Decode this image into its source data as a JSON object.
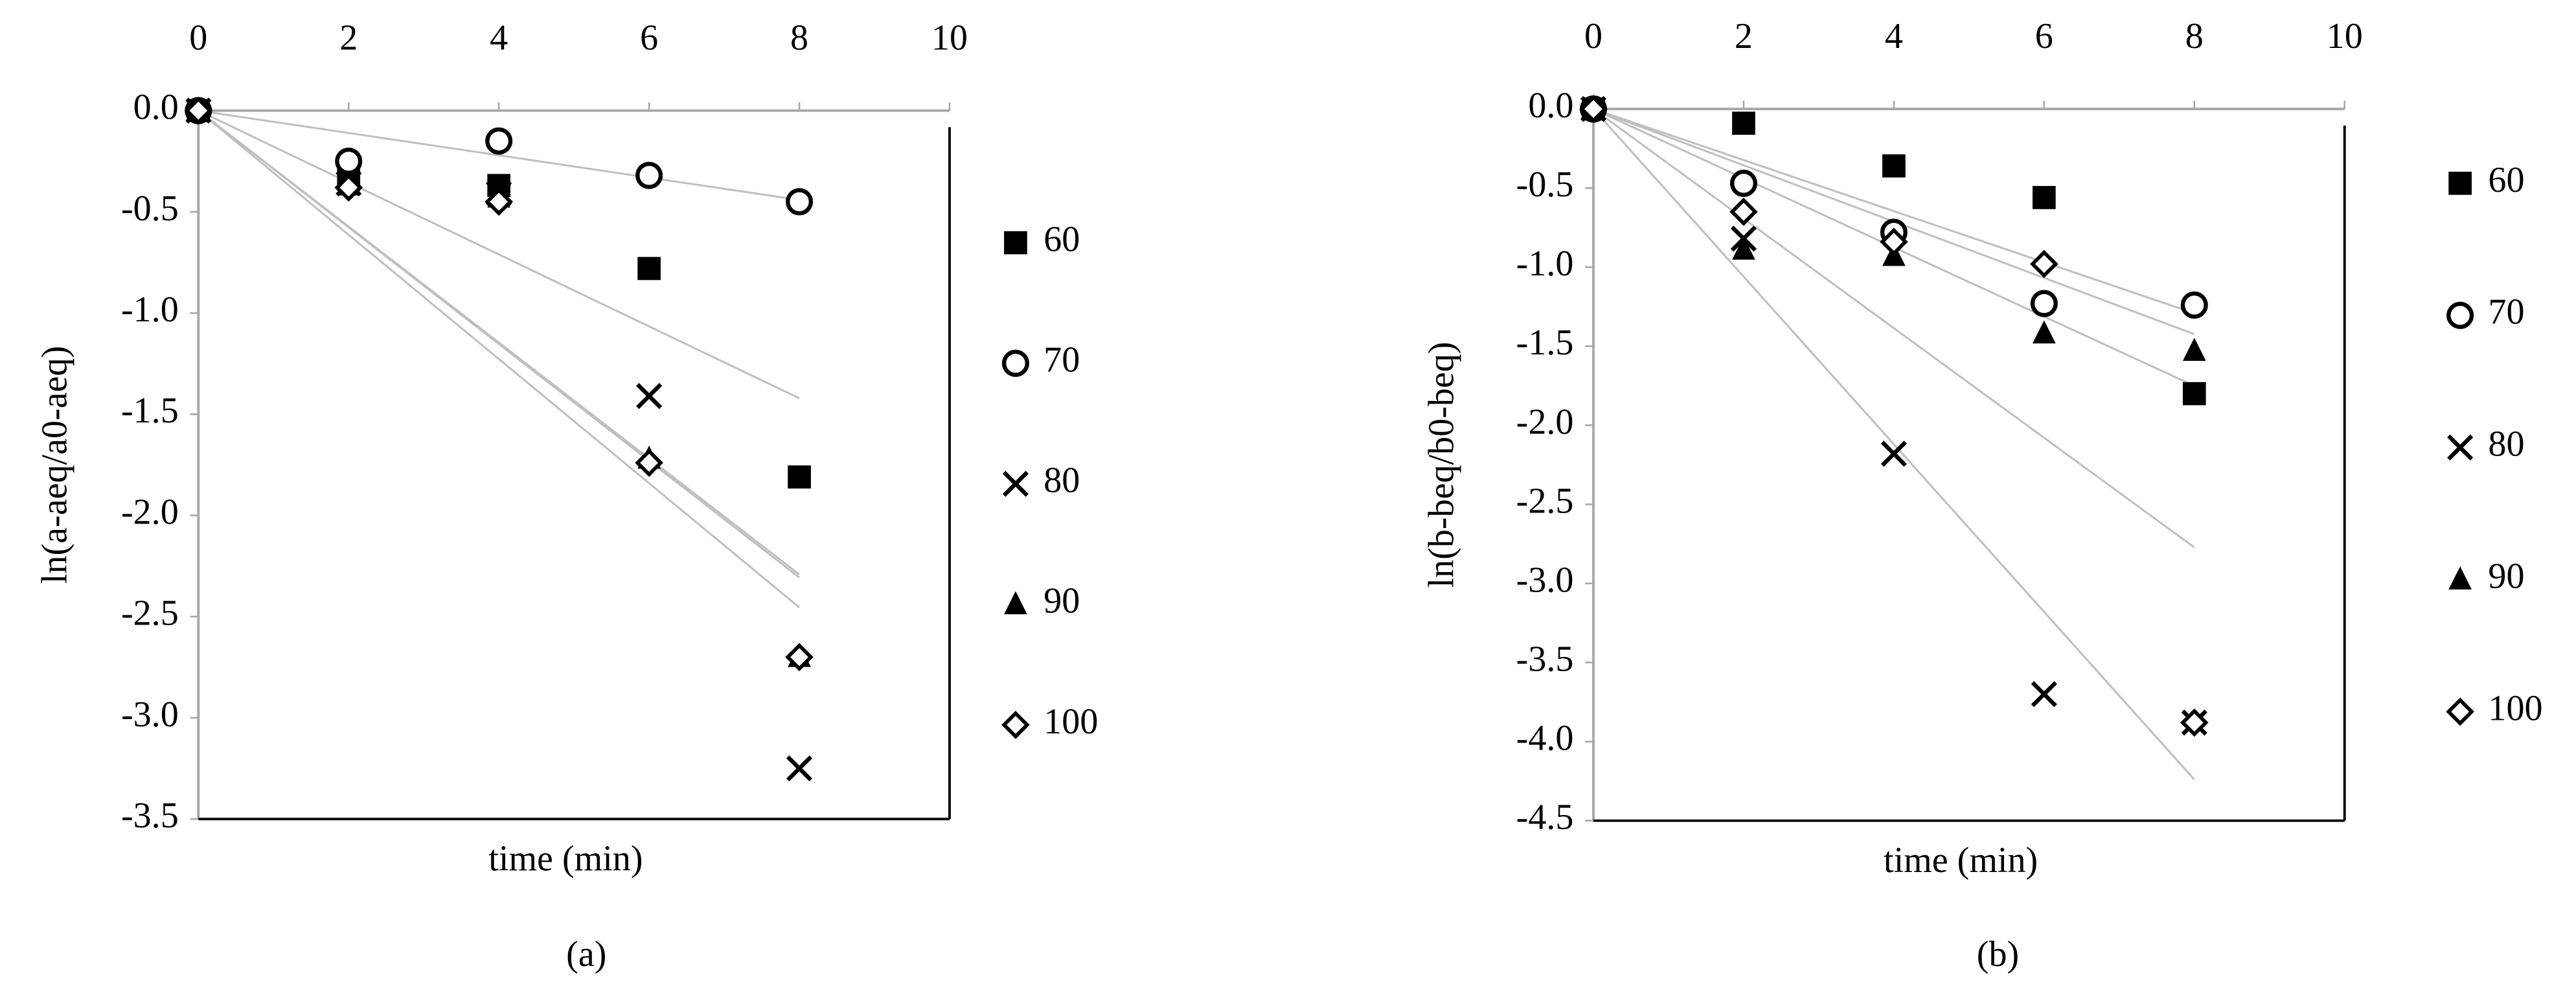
{
  "chart_data": [
    {
      "type": "scatter",
      "trendline": "linear",
      "caption": "(a)",
      "x_label": "time (min)",
      "y_label": "ln(a-aeq/a0-aeq)",
      "x": [
        0,
        2,
        4,
        6,
        8
      ],
      "xlim": [
        0,
        10
      ],
      "xticks": [
        0,
        2,
        4,
        6,
        8,
        10
      ],
      "ylim": [
        0,
        -3.5
      ],
      "yticks": [
        {
          "value": 0,
          "label": "0.0"
        },
        -0.5,
        {
          "value": -1,
          "label": "-1.0"
        },
        -1.5,
        {
          "value": -2,
          "label": "-2.0"
        },
        -2.5,
        {
          "value": -3,
          "label": "-3.0"
        },
        -3.5
      ],
      "series": [
        {
          "name": "60",
          "marker": "square",
          "color": "#000000",
          "values": [
            0,
            -0.34,
            -0.37,
            -0.78,
            -1.81
          ]
        },
        {
          "name": "70",
          "marker": "circle",
          "color": "#000000",
          "values": [
            0,
            -0.25,
            -0.15,
            -0.32,
            -0.45
          ]
        },
        {
          "name": "80",
          "marker": "x",
          "color": "#000000",
          "values": [
            0,
            -0.36,
            -0.41,
            -1.41,
            -3.25
          ]
        },
        {
          "name": "90",
          "marker": "triangle",
          "color": "#000000",
          "values": [
            0,
            -0.37,
            -0.43,
            -1.72,
            -2.7
          ]
        },
        {
          "name": "100",
          "marker": "diamond",
          "color": "#000000",
          "values": [
            0,
            -0.38,
            -0.45,
            -1.74,
            -2.7
          ]
        }
      ]
    },
    {
      "type": "scatter",
      "trendline": "linear",
      "caption": "(b)",
      "x_label": "time (min)",
      "y_label": "ln(b-beq/b0-beq)",
      "x": [
        0,
        2,
        4,
        6,
        8
      ],
      "xlim": [
        0,
        10
      ],
      "xticks": [
        0,
        2,
        4,
        6,
        8,
        10
      ],
      "ylim": [
        0,
        -4.5
      ],
      "yticks": [
        {
          "value": 0,
          "label": "0.0"
        },
        -0.5,
        {
          "value": -1,
          "label": "-1.0"
        },
        -1.5,
        {
          "value": -2,
          "label": "-2.0"
        },
        -2.5,
        {
          "value": -3,
          "label": "-3.0"
        },
        -3.5,
        {
          "value": -4,
          "label": "-4.0"
        },
        -4.5
      ],
      "series": [
        {
          "name": "60",
          "marker": "square",
          "color": "#000000",
          "values": [
            0,
            -0.09,
            -0.36,
            -0.56,
            -1.8
          ]
        },
        {
          "name": "70",
          "marker": "circle",
          "color": "#000000",
          "values": [
            0,
            -0.47,
            -0.78,
            -1.23,
            -1.24
          ]
        },
        {
          "name": "80",
          "marker": "x",
          "color": "#000000",
          "values": [
            0,
            -0.82,
            -2.18,
            -3.7,
            -3.88
          ]
        },
        {
          "name": "90",
          "marker": "triangle",
          "color": "#000000",
          "values": [
            0,
            -0.89,
            -0.93,
            -1.42,
            -1.53
          ]
        },
        {
          "name": "100",
          "marker": "diamond",
          "color": "#000000",
          "values": [
            0,
            -0.65,
            -0.84,
            -0.98,
            -3.88
          ]
        }
      ]
    }
  ]
}
